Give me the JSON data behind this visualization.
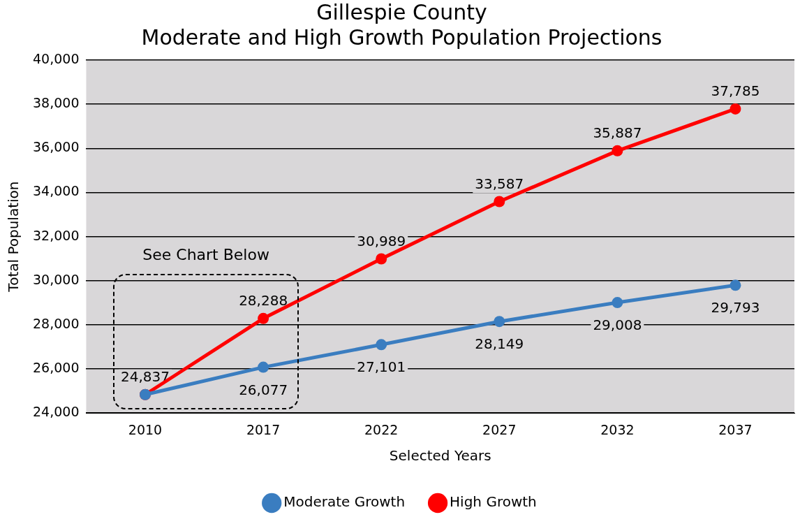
{
  "chart_data": {
    "type": "line",
    "title": "Gillespie County\nModerate and High Growth Population Projections",
    "xlabel": "Selected Years",
    "ylabel": "Total Population",
    "categories": [
      "2010",
      "2017",
      "2022",
      "2027",
      "2032",
      "2037"
    ],
    "series": [
      {
        "name": "Moderate Growth",
        "color": "#3a7dc0",
        "values": [
          24837,
          26077,
          27101,
          28149,
          29008,
          29793
        ],
        "value_labels": [
          null,
          "26,077",
          "27,101",
          "28,149",
          "29,008",
          "29,793"
        ]
      },
      {
        "name": "High Growth",
        "color": "#ff0000",
        "values": [
          24837,
          28288,
          30989,
          33587,
          35887,
          37785
        ],
        "value_labels": [
          "24,837",
          "28,288",
          "30,989",
          "33,587",
          "35,887",
          "37,785"
        ]
      }
    ],
    "ylim": [
      24000,
      40000
    ],
    "yticks": [
      {
        "value": 24000,
        "label": "24,000"
      },
      {
        "value": 26000,
        "label": "26,000"
      },
      {
        "value": 28000,
        "label": "28,000"
      },
      {
        "value": 30000,
        "label": "30,000"
      },
      {
        "value": 32000,
        "label": "32,000"
      },
      {
        "value": 34000,
        "label": "34,000"
      },
      {
        "value": 36000,
        "label": "36,000"
      },
      {
        "value": 38000,
        "label": "38,000"
      },
      {
        "value": 40000,
        "label": "40,000"
      }
    ],
    "grid": "y",
    "legend": "bottom",
    "marker": "circle",
    "line_style": "solid",
    "annotations": [
      "See Chart Below"
    ]
  }
}
